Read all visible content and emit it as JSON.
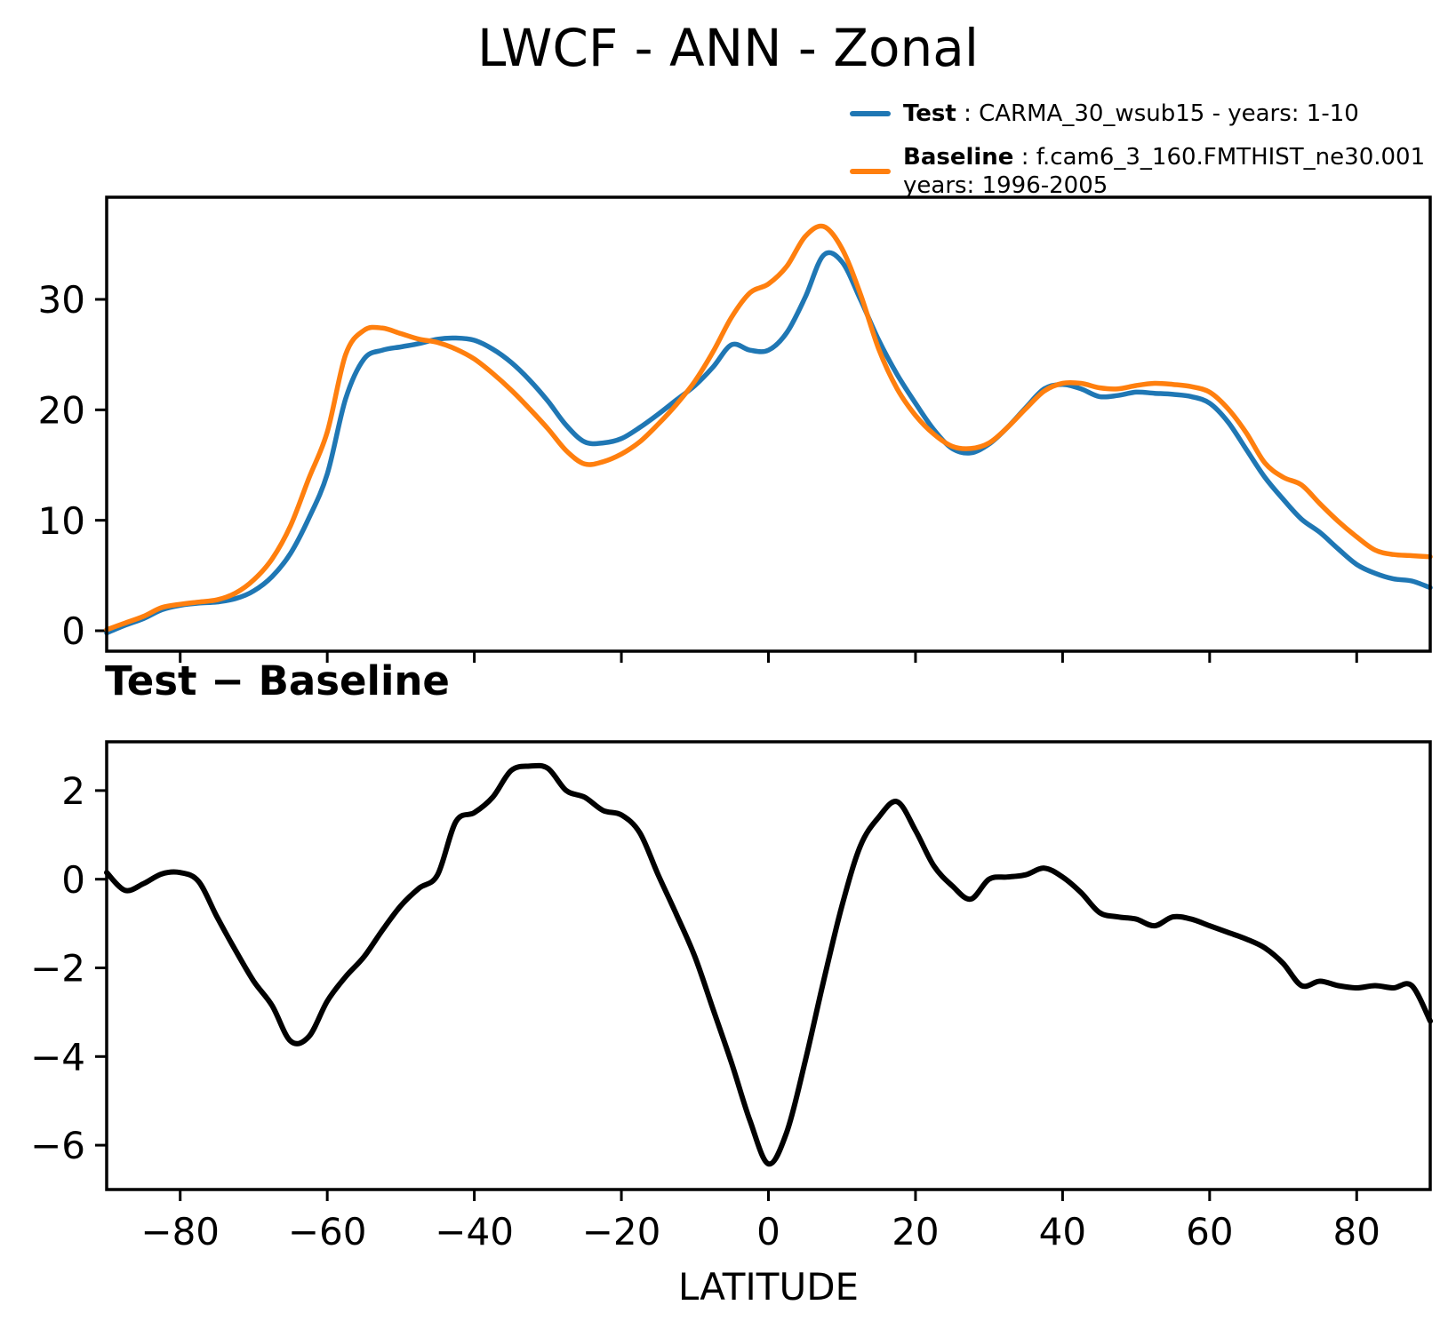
{
  "title": "LWCF - ANN - Zonal",
  "legend": {
    "test_label": "Test",
    "test_rest": " : CARMA_30_wsub15 - years: 1-10",
    "baseline_label": "Baseline",
    "baseline_rest": " : f.cam6_3_160.FMTHIST_ne30.001",
    "baseline_rest2": "years: 1996-2005",
    "test_color": "#1f77b4",
    "baseline_color": "#ff7f0e"
  },
  "diff_panel_title": "Test − Baseline",
  "xlabel": "LATITUDE",
  "chart_data": [
    {
      "type": "line",
      "title": "LWCF - ANN - Zonal",
      "xlabel": "",
      "ylabel": "",
      "grid": false,
      "legend_position": "upper right, above axes",
      "xlim": [
        -90,
        90
      ],
      "ylim": [
        -1.85,
        39.25
      ],
      "xticks": [
        -80,
        -60,
        -40,
        -20,
        0,
        20,
        40,
        60,
        80
      ],
      "show_xtick_labels": false,
      "yticks": [
        0,
        10,
        20,
        30
      ],
      "x": [
        -90,
        -87.5,
        -85,
        -82.5,
        -80,
        -77.5,
        -75,
        -72.5,
        -70,
        -67.5,
        -65,
        -62.5,
        -60,
        -57.5,
        -55,
        -52.5,
        -50,
        -47.5,
        -45,
        -42.5,
        -40,
        -37.5,
        -35,
        -32.5,
        -30,
        -27.5,
        -25,
        -22.5,
        -20,
        -17.5,
        -15,
        -12.5,
        -10,
        -7.5,
        -5,
        -2.5,
        0,
        2.5,
        5,
        7.5,
        10,
        12.5,
        15,
        17.5,
        20,
        22.5,
        25,
        27.5,
        30,
        32.5,
        35,
        37.5,
        40,
        42.5,
        45,
        47.5,
        50,
        52.5,
        55,
        57.5,
        60,
        62.5,
        65,
        67.5,
        70,
        72.5,
        75,
        77.5,
        80,
        82.5,
        85,
        87.5,
        90
      ],
      "series": [
        {
          "name": "Test",
          "color": "#1f77b4",
          "values": [
            -0.2,
            0.5,
            1.1,
            1.9,
            2.3,
            2.5,
            2.6,
            2.9,
            3.6,
            4.9,
            7.0,
            10.2,
            14.2,
            21.0,
            24.6,
            25.4,
            25.7,
            26.0,
            26.4,
            26.5,
            26.3,
            25.5,
            24.3,
            22.7,
            20.8,
            18.6,
            17.1,
            17.0,
            17.4,
            18.4,
            19.6,
            20.9,
            22.2,
            23.9,
            25.9,
            25.4,
            25.4,
            27.0,
            30.2,
            34.0,
            33.4,
            30.0,
            26.3,
            23.2,
            20.6,
            18.2,
            16.5,
            16.1,
            16.9,
            18.4,
            20.2,
            21.9,
            22.3,
            21.9,
            21.2,
            21.3,
            21.6,
            21.5,
            21.4,
            21.2,
            20.6,
            18.9,
            16.4,
            13.9,
            11.9,
            10.1,
            8.9,
            7.4,
            6.0,
            5.2,
            4.7,
            4.5,
            3.9
          ]
        },
        {
          "name": "Baseline",
          "color": "#ff7f0e",
          "values": [
            0.1,
            0.7,
            1.3,
            2.1,
            2.4,
            2.6,
            2.8,
            3.4,
            4.6,
            6.5,
            9.5,
            13.8,
            18.0,
            25.0,
            27.2,
            27.4,
            26.9,
            26.4,
            26.1,
            25.5,
            24.6,
            23.3,
            21.8,
            20.1,
            18.3,
            16.3,
            15.1,
            15.3,
            16.0,
            17.1,
            18.7,
            20.5,
            22.6,
            25.3,
            28.4,
            30.6,
            31.4,
            33.0,
            35.7,
            36.6,
            34.6,
            30.5,
            25.5,
            21.9,
            19.5,
            17.8,
            16.7,
            16.5,
            17.0,
            18.4,
            20.1,
            21.7,
            22.4,
            22.4,
            22.0,
            21.9,
            22.2,
            22.4,
            22.3,
            22.1,
            21.6,
            20.1,
            17.9,
            15.2,
            13.9,
            13.2,
            11.5,
            9.9,
            8.5,
            7.3,
            6.9,
            6.8,
            6.7
          ]
        }
      ]
    },
    {
      "type": "line",
      "title": "Test − Baseline",
      "xlabel": "LATITUDE",
      "ylabel": "",
      "grid": false,
      "xlim": [
        -90,
        90
      ],
      "ylim": [
        -7.0,
        3.1
      ],
      "xticks": [
        -80,
        -60,
        -40,
        -20,
        0,
        20,
        40,
        60,
        80
      ],
      "show_xtick_labels": true,
      "yticks": [
        2,
        0,
        -2,
        -4,
        -6
      ],
      "x": [
        -90,
        -87.5,
        -85,
        -82.5,
        -80,
        -77.5,
        -75,
        -72.5,
        -70,
        -67.5,
        -65,
        -62.5,
        -60,
        -57.5,
        -55,
        -52.5,
        -50,
        -47.5,
        -45,
        -42.5,
        -40,
        -37.5,
        -35,
        -32.5,
        -30,
        -27.5,
        -25,
        -22.5,
        -20,
        -17.5,
        -15,
        -12.5,
        -10,
        -7.5,
        -5,
        -2.5,
        0,
        2.5,
        5,
        7.5,
        10,
        12.5,
        15,
        17.5,
        20,
        22.5,
        25,
        27.5,
        30,
        32.5,
        35,
        37.5,
        40,
        42.5,
        45,
        47.5,
        50,
        52.5,
        55,
        57.5,
        60,
        62.5,
        65,
        67.5,
        70,
        72.5,
        75,
        77.5,
        80,
        82.5,
        85,
        87.5,
        90
      ],
      "series": [
        {
          "name": "Test minus Baseline",
          "color": "#000000",
          "values": [
            0.15,
            -0.25,
            -0.1,
            0.12,
            0.15,
            -0.05,
            -0.85,
            -1.6,
            -2.3,
            -2.85,
            -3.65,
            -3.55,
            -2.75,
            -2.2,
            -1.75,
            -1.15,
            -0.6,
            -0.2,
            0.1,
            1.3,
            1.5,
            1.85,
            2.45,
            2.55,
            2.5,
            2.0,
            1.85,
            1.55,
            1.45,
            1.05,
            0.1,
            -0.8,
            -1.75,
            -2.95,
            -4.15,
            -5.45,
            -6.42,
            -5.7,
            -4.1,
            -2.3,
            -0.6,
            0.75,
            1.4,
            1.75,
            1.1,
            0.3,
            -0.15,
            -0.45,
            0.0,
            0.05,
            0.1,
            0.25,
            0.05,
            -0.3,
            -0.75,
            -0.85,
            -0.9,
            -1.05,
            -0.85,
            -0.9,
            -1.05,
            -1.2,
            -1.35,
            -1.55,
            -1.9,
            -2.4,
            -2.3,
            -2.4,
            -2.45,
            -2.4,
            -2.45,
            -2.4,
            -3.2
          ]
        }
      ]
    }
  ]
}
